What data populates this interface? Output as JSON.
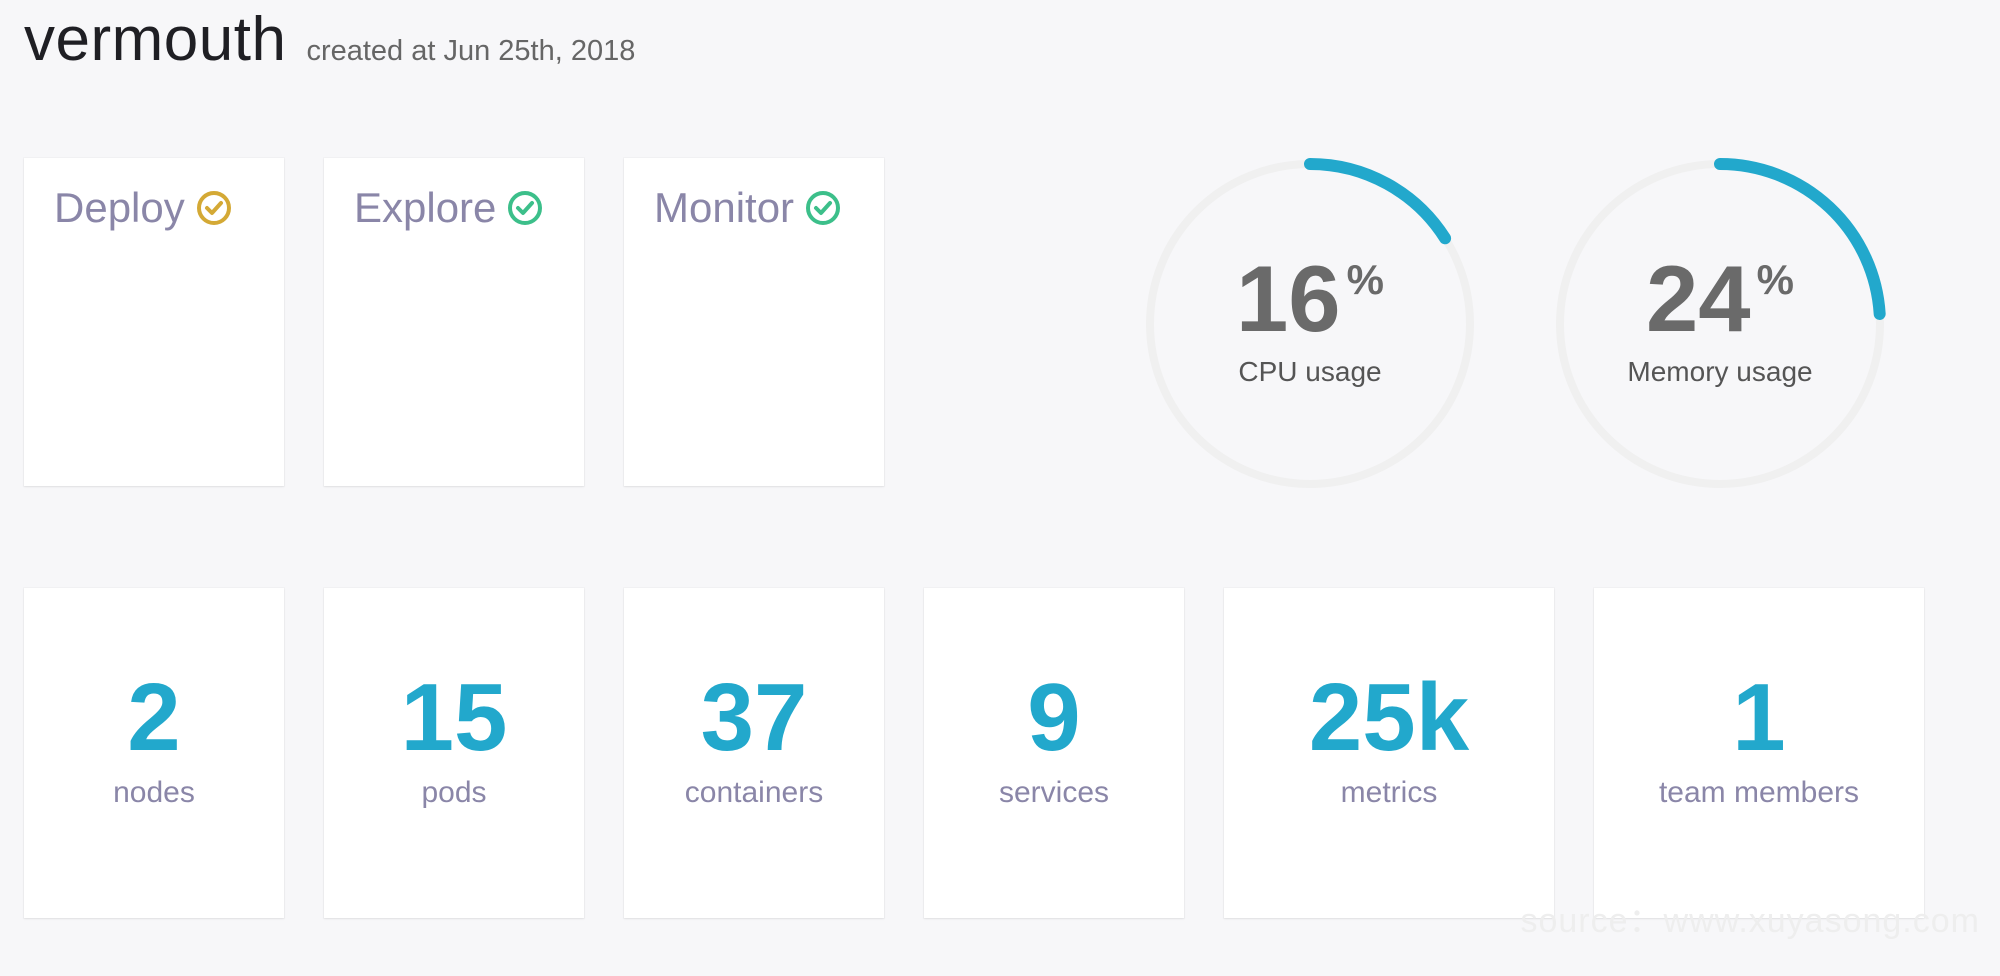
{
  "header": {
    "title": "vermouth",
    "subtitle": "created at Jun 25th, 2018"
  },
  "features": [
    {
      "label": "Deploy",
      "icon": "check-circle-icon",
      "color": "#d4a935"
    },
    {
      "label": "Explore",
      "icon": "check-circle-icon",
      "color": "#3cbf8a"
    },
    {
      "label": "Monitor",
      "icon": "check-circle-icon",
      "color": "#3cbf8a"
    }
  ],
  "gauges": [
    {
      "value": 16,
      "percent_sign": "%",
      "label": "CPU usage",
      "fraction": 0.16
    },
    {
      "value": 24,
      "percent_sign": "%",
      "label": "Memory usage",
      "fraction": 0.24
    }
  ],
  "stats": [
    {
      "value": "2",
      "label": "nodes"
    },
    {
      "value": "15",
      "label": "pods"
    },
    {
      "value": "37",
      "label": "containers"
    },
    {
      "value": "9",
      "label": "services"
    },
    {
      "value": "25k",
      "label": "metrics"
    },
    {
      "value": "1",
      "label": "team members"
    }
  ],
  "colors": {
    "accent": "#22a8cc",
    "track": "#f0f0f0",
    "feature_text": "#8a86a8"
  },
  "watermark": "source：www.xuyasong.com"
}
